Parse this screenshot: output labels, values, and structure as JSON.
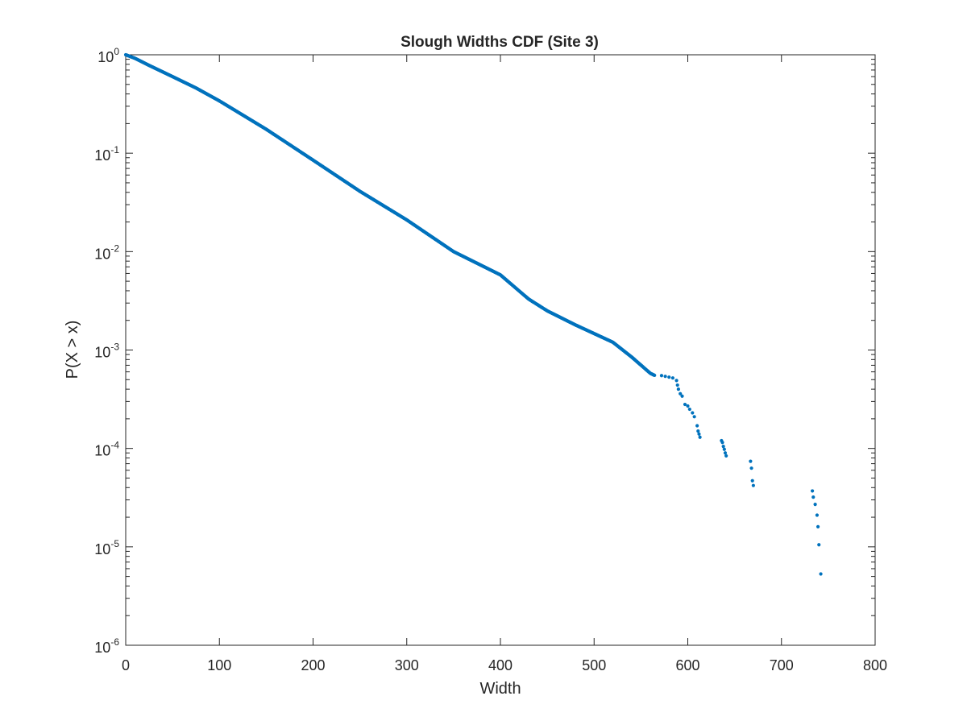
{
  "chart_data": {
    "type": "scatter",
    "title": "Slough Widths CDF (Site 3)",
    "xlabel": "Width",
    "ylabel": "P(X > x)",
    "xlim": [
      0,
      800
    ],
    "ylim": [
      1e-06,
      1
    ],
    "yscale": "log",
    "grid": false,
    "legend": "none",
    "marker_color": "#0072BD",
    "x_ticks": [
      {
        "value": 0,
        "label": "0"
      },
      {
        "value": 100,
        "label": "100"
      },
      {
        "value": 200,
        "label": "200"
      },
      {
        "value": 300,
        "label": "300"
      },
      {
        "value": 400,
        "label": "400"
      },
      {
        "value": 500,
        "label": "500"
      },
      {
        "value": 600,
        "label": "600"
      },
      {
        "value": 700,
        "label": "700"
      },
      {
        "value": 800,
        "label": "800"
      }
    ],
    "y_ticks": [
      {
        "value": 1,
        "base": "10",
        "exp": "0"
      },
      {
        "value": 0.1,
        "base": "10",
        "exp": "-1"
      },
      {
        "value": 0.01,
        "base": "10",
        "exp": "-2"
      },
      {
        "value": 0.001,
        "base": "10",
        "exp": "-3"
      },
      {
        "value": 0.0001,
        "base": "10",
        "exp": "-4"
      },
      {
        "value": 1e-05,
        "base": "10",
        "exp": "-5"
      },
      {
        "value": 1e-06,
        "base": "10",
        "exp": "-6"
      }
    ],
    "curve_points": [
      [
        0,
        1.0
      ],
      [
        10,
        0.92
      ],
      [
        25,
        0.78
      ],
      [
        50,
        0.6
      ],
      [
        75,
        0.46
      ],
      [
        100,
        0.34
      ],
      [
        150,
        0.175
      ],
      [
        200,
        0.085
      ],
      [
        250,
        0.041
      ],
      [
        300,
        0.021
      ],
      [
        350,
        0.01
      ],
      [
        400,
        0.0058
      ],
      [
        430,
        0.0033
      ],
      [
        450,
        0.0025
      ],
      [
        480,
        0.0018
      ],
      [
        520,
        0.0012
      ],
      [
        540,
        0.00085
      ],
      [
        560,
        0.00058
      ],
      [
        565,
        0.00055
      ]
    ],
    "tail_points": [
      [
        572,
        0.00055
      ],
      [
        576,
        0.00054
      ],
      [
        580,
        0.00053
      ],
      [
        584,
        0.00052
      ],
      [
        588,
        0.00049
      ],
      [
        589,
        0.00044
      ],
      [
        590,
        0.0004
      ],
      [
        592,
        0.00036
      ],
      [
        594,
        0.00034
      ],
      [
        597,
        0.00028
      ],
      [
        600,
        0.00027
      ],
      [
        602,
        0.00025
      ],
      [
        605,
        0.00023
      ],
      [
        607,
        0.00021
      ],
      [
        610,
        0.00017
      ],
      [
        611,
        0.00015
      ],
      [
        612,
        0.00014
      ],
      [
        613,
        0.00013
      ],
      [
        636,
        0.00012
      ],
      [
        637,
        0.000115
      ],
      [
        638,
        0.000105
      ],
      [
        639,
        9.8e-05
      ],
      [
        640,
        9e-05
      ],
      [
        641,
        8.4e-05
      ],
      [
        667,
        7.4e-05
      ],
      [
        668,
        6.3e-05
      ],
      [
        669,
        4.7e-05
      ],
      [
        670,
        4.2e-05
      ],
      [
        733,
        3.7e-05
      ],
      [
        734,
        3.2e-05
      ],
      [
        736,
        2.7e-05
      ],
      [
        738,
        2.1e-05
      ],
      [
        739,
        1.6e-05
      ],
      [
        740,
        1.05e-05
      ],
      [
        742,
        5.3e-06
      ]
    ]
  }
}
